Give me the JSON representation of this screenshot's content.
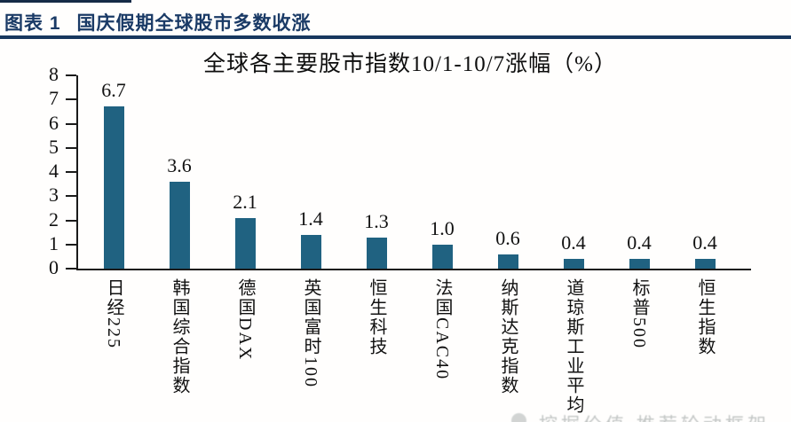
{
  "header": {
    "label": "图表 1",
    "title": "国庆假期全球股市多数收涨",
    "accent_color": "#17375E"
  },
  "chart_data": {
    "type": "bar",
    "title": "全球各主要股市指数10/1-10/7涨幅（%）",
    "categories": [
      "日经225",
      "韩国综合指数",
      "德国DAX",
      "英国富时100",
      "恒生科技",
      "法国CAC40",
      "纳斯达克指数",
      "道琼斯工业平均",
      "标普500",
      "恒生指数"
    ],
    "values": [
      6.7,
      3.6,
      2.1,
      1.4,
      1.3,
      1.0,
      0.6,
      0.4,
      0.4,
      0.4
    ],
    "xlabel": "",
    "ylabel": "",
    "ylim": [
      0,
      8
    ],
    "yticks": [
      0,
      1,
      2,
      3,
      4,
      5,
      6,
      7,
      8
    ],
    "grid": false,
    "legend": false,
    "data_labels": true,
    "bar_color": "#206281",
    "axis_color": "#1a1a1a",
    "text_color": "#111111"
  },
  "watermark": {
    "text": "挖掘价值 推荐轮动框架",
    "color": "#aeb3b2"
  }
}
